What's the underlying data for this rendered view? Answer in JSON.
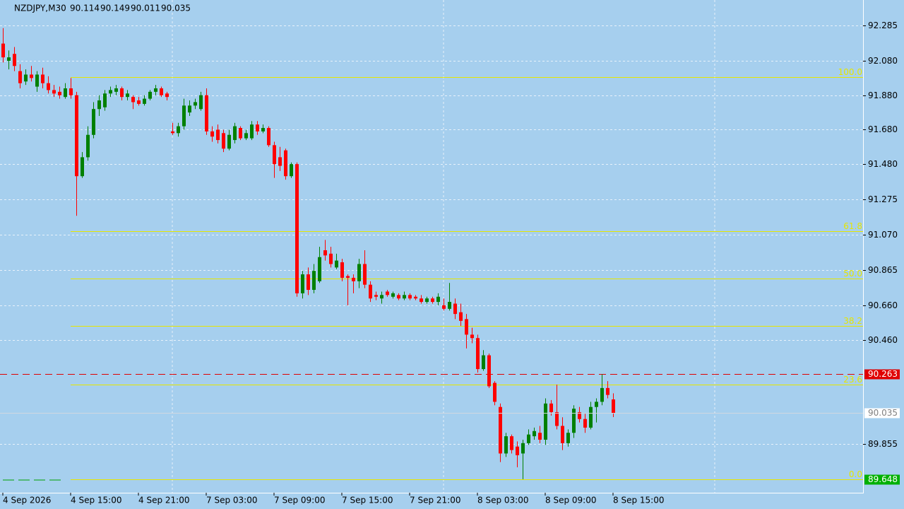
{
  "chart_data": {
    "type": "candlestick",
    "symbol": "NZDJPY,M30",
    "ylim": [
      89.572,
      92.433
    ],
    "yticks": [
      92.285,
      {
        "value": 92.08,
        "label": "92.080"
      },
      {
        "value": 91.88,
        "label": "91.880"
      },
      {
        "value": 91.68,
        "label": "91.680"
      },
      {
        "value": 91.48,
        "label": "91.480"
      },
      91.275,
      {
        "value": 91.07,
        "label": "91.070"
      },
      90.865,
      {
        "value": 90.66,
        "label": "90.660"
      },
      {
        "value": 90.46,
        "label": "90.460"
      },
      89.855
    ],
    "xtick_labels": [
      "4 Sep 2026",
      "4 Sep 15:00",
      "4 Sep 21:00",
      "7 Sep 03:00",
      "7 Sep 09:00",
      "7 Sep 15:00",
      "7 Sep 21:00",
      "8 Sep 03:00",
      "8 Sep 09:00",
      "8 Sep 15:00"
    ],
    "bull_color": "#008000",
    "bear_color": "#ff0000",
    "high_line": {
      "value": 90.263,
      "color": "#e00000"
    },
    "fibo": {
      "color": "#e6e600",
      "levels": [
        {
          "ratio": "100.0",
          "price": 91.985
        },
        {
          "ratio": "61.8",
          "price": 91.092
        },
        {
          "ratio": "50.0",
          "price": 90.817
        },
        {
          "ratio": "38.2",
          "price": 90.541
        },
        {
          "ratio": "23.6",
          "price": 90.2
        },
        {
          "ratio": "0.0",
          "price": 89.648
        }
      ]
    },
    "candles": [
      [
        92.18,
        92.27,
        92.07,
        92.1
      ],
      [
        92.08,
        92.14,
        92.03,
        92.1
      ],
      [
        92.12,
        92.16,
        92.02,
        92.05
      ],
      [
        92.02,
        92.06,
        91.92,
        91.95
      ],
      [
        91.96,
        92.03,
        91.94,
        92.0
      ],
      [
        92.0,
        92.05,
        91.96,
        91.98
      ],
      [
        91.93,
        92.02,
        91.9,
        92.0
      ],
      [
        92.0,
        92.04,
        91.92,
        91.95
      ],
      [
        91.95,
        91.99,
        91.89,
        91.91
      ],
      [
        91.91,
        91.94,
        91.87,
        91.89
      ],
      [
        91.9,
        91.93,
        91.86,
        91.88
      ],
      [
        91.87,
        91.95,
        91.86,
        91.92
      ],
      [
        91.92,
        91.98,
        91.86,
        91.88
      ],
      [
        91.88,
        91.9,
        91.18,
        91.41
      ],
      [
        91.41,
        91.55,
        91.4,
        91.52
      ],
      [
        91.52,
        91.7,
        91.5,
        91.65
      ],
      [
        91.65,
        91.84,
        91.63,
        91.8
      ],
      [
        91.8,
        91.88,
        91.76,
        91.85
      ],
      [
        91.81,
        91.91,
        91.79,
        91.89
      ],
      [
        91.89,
        91.93,
        91.87,
        91.91
      ],
      [
        91.9,
        91.94,
        91.88,
        91.92
      ],
      [
        91.92,
        91.93,
        91.85,
        91.87
      ],
      [
        91.87,
        91.91,
        91.85,
        91.89
      ],
      [
        91.87,
        91.88,
        91.8,
        91.84
      ],
      [
        91.85,
        91.87,
        91.82,
        91.83
      ],
      [
        91.83,
        91.88,
        91.82,
        91.86
      ],
      [
        91.86,
        91.91,
        91.85,
        91.9
      ],
      [
        91.9,
        91.94,
        91.88,
        91.92
      ],
      [
        91.92,
        91.93,
        91.87,
        91.88
      ],
      [
        91.89,
        91.9,
        91.85,
        91.87
      ],
      [
        91.67,
        91.72,
        91.65,
        91.66
      ],
      [
        91.66,
        91.72,
        91.64,
        91.7
      ],
      [
        91.7,
        91.86,
        91.68,
        91.82
      ],
      [
        91.78,
        91.85,
        91.76,
        91.82
      ],
      [
        91.82,
        91.86,
        91.8,
        91.84
      ],
      [
        91.8,
        91.9,
        91.79,
        91.88
      ],
      [
        91.88,
        91.92,
        91.65,
        91.67
      ],
      [
        91.67,
        91.7,
        91.61,
        91.64
      ],
      [
        91.68,
        91.71,
        91.6,
        91.62
      ],
      [
        91.66,
        91.68,
        91.55,
        91.57
      ],
      [
        91.57,
        91.68,
        91.56,
        91.65
      ],
      [
        91.62,
        91.72,
        91.6,
        91.7
      ],
      [
        91.69,
        91.7,
        91.62,
        91.63
      ],
      [
        91.63,
        91.68,
        91.62,
        91.66
      ],
      [
        91.63,
        91.73,
        91.62,
        91.71
      ],
      [
        91.71,
        91.73,
        91.65,
        91.67
      ],
      [
        91.67,
        91.71,
        91.66,
        91.69
      ],
      [
        91.69,
        91.7,
        91.58,
        91.59
      ],
      [
        91.59,
        91.61,
        91.4,
        91.48
      ],
      [
        91.52,
        91.58,
        91.44,
        91.47
      ],
      [
        91.56,
        91.57,
        91.39,
        91.41
      ],
      [
        91.41,
        91.49,
        91.4,
        91.48
      ],
      [
        91.48,
        91.49,
        90.71,
        90.73
      ],
      [
        90.73,
        90.86,
        90.7,
        90.84
      ],
      [
        90.84,
        90.88,
        90.72,
        90.75
      ],
      [
        90.75,
        90.9,
        90.73,
        90.86
      ],
      [
        90.8,
        91.0,
        90.79,
        90.94
      ],
      [
        90.98,
        91.04,
        90.92,
        90.95
      ],
      [
        90.96,
        91.0,
        90.88,
        90.9
      ],
      [
        90.88,
        90.96,
        90.87,
        90.92
      ],
      [
        90.91,
        90.93,
        90.8,
        90.82
      ],
      [
        90.83,
        90.84,
        90.66,
        90.82
      ],
      [
        90.82,
        90.84,
        90.73,
        90.8
      ],
      [
        90.8,
        90.93,
        90.76,
        90.9
      ],
      [
        90.9,
        90.98,
        90.76,
        90.78
      ],
      [
        90.78,
        90.8,
        90.68,
        90.7
      ],
      [
        90.72,
        90.74,
        90.69,
        90.71
      ],
      [
        90.7,
        90.74,
        90.67,
        90.72
      ],
      [
        90.74,
        90.75,
        90.71,
        90.72
      ],
      [
        90.71,
        90.74,
        90.7,
        90.73
      ],
      [
        90.72,
        90.73,
        90.69,
        90.7
      ],
      [
        90.7,
        90.74,
        90.69,
        90.72
      ],
      [
        90.72,
        90.73,
        90.69,
        90.7
      ],
      [
        90.71,
        90.72,
        90.69,
        90.7
      ],
      [
        90.7,
        90.72,
        90.67,
        90.68
      ],
      [
        90.68,
        90.71,
        90.67,
        90.7
      ],
      [
        90.7,
        90.71,
        90.67,
        90.68
      ],
      [
        90.68,
        90.73,
        90.66,
        90.71
      ],
      [
        90.66,
        90.7,
        90.63,
        90.64
      ],
      [
        90.64,
        90.79,
        90.63,
        90.68
      ],
      [
        90.67,
        90.7,
        90.58,
        90.61
      ],
      [
        90.62,
        90.67,
        90.54,
        90.57
      ],
      [
        90.58,
        90.61,
        90.41,
        90.49
      ],
      [
        90.49,
        90.53,
        90.44,
        90.47
      ],
      [
        90.47,
        90.49,
        90.27,
        90.29
      ],
      [
        90.29,
        90.4,
        90.28,
        90.37
      ],
      [
        90.37,
        90.38,
        90.18,
        90.19
      ],
      [
        90.21,
        90.22,
        90.08,
        90.1
      ],
      [
        90.07,
        90.09,
        89.75,
        89.8
      ],
      [
        89.8,
        89.92,
        89.78,
        89.9
      ],
      [
        89.9,
        89.91,
        89.8,
        89.82
      ],
      [
        89.84,
        89.87,
        89.72,
        89.79
      ],
      [
        89.8,
        89.88,
        89.65,
        89.86
      ],
      [
        89.86,
        89.94,
        89.85,
        89.91
      ],
      [
        89.9,
        89.95,
        89.88,
        89.93
      ],
      [
        89.92,
        89.96,
        89.86,
        89.88
      ],
      [
        89.88,
        90.12,
        89.85,
        90.09
      ],
      [
        90.09,
        90.11,
        90.02,
        90.04
      ],
      [
        90.04,
        90.2,
        89.94,
        89.96
      ],
      [
        89.96,
        90.01,
        89.82,
        89.86
      ],
      [
        89.86,
        89.94,
        89.84,
        89.92
      ],
      [
        89.92,
        90.08,
        89.89,
        90.06
      ],
      [
        90.04,
        90.07,
        89.98,
        90.0
      ],
      [
        90.0,
        90.03,
        89.92,
        89.95
      ],
      [
        89.95,
        90.1,
        89.94,
        90.07
      ],
      [
        90.07,
        90.12,
        89.98,
        90.1
      ],
      [
        90.1,
        90.26,
        90.08,
        90.18
      ],
      [
        90.18,
        90.22,
        90.12,
        90.14
      ],
      [
        90.114,
        90.149,
        90.011,
        90.035
      ]
    ]
  }
}
